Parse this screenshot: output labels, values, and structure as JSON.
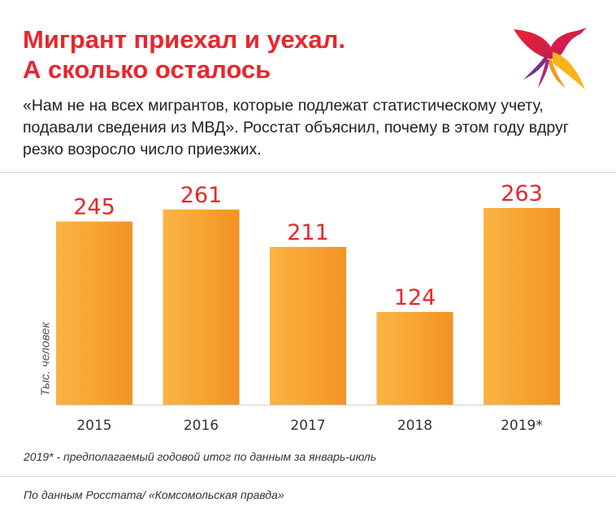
{
  "header": {
    "title_line1": "Мигрант приехал и уехал.",
    "title_line2": "А сколько осталось",
    "subtitle": "«Нам не на всех мигрантов, которые подлежат статистическому учету, подавали сведения из МВД». Росстат объяснил, почему в этом году вдруг резко возросло число приезжих."
  },
  "logo": {
    "icon": "bird-logo-icon"
  },
  "colors": {
    "title": "#e8262d",
    "bar_light": "#fbb443",
    "bar_dark": "#f39324",
    "value_label": "#e8262d"
  },
  "chart_data": {
    "type": "bar",
    "categories": [
      "2015",
      "2016",
      "2017",
      "2018",
      "2019*"
    ],
    "values": [
      245,
      261,
      211,
      124,
      263
    ],
    "title": "",
    "xlabel": "",
    "ylabel": "Тыс. человек",
    "ylim": [
      0,
      300
    ],
    "grid": false,
    "legend": "none",
    "data_labels": true
  },
  "footer": {
    "footnote": "2019* - предполагаемый годовой итог по данным за январь-июль",
    "source": "По данным Росстата/ «Комсомольская правда»"
  }
}
